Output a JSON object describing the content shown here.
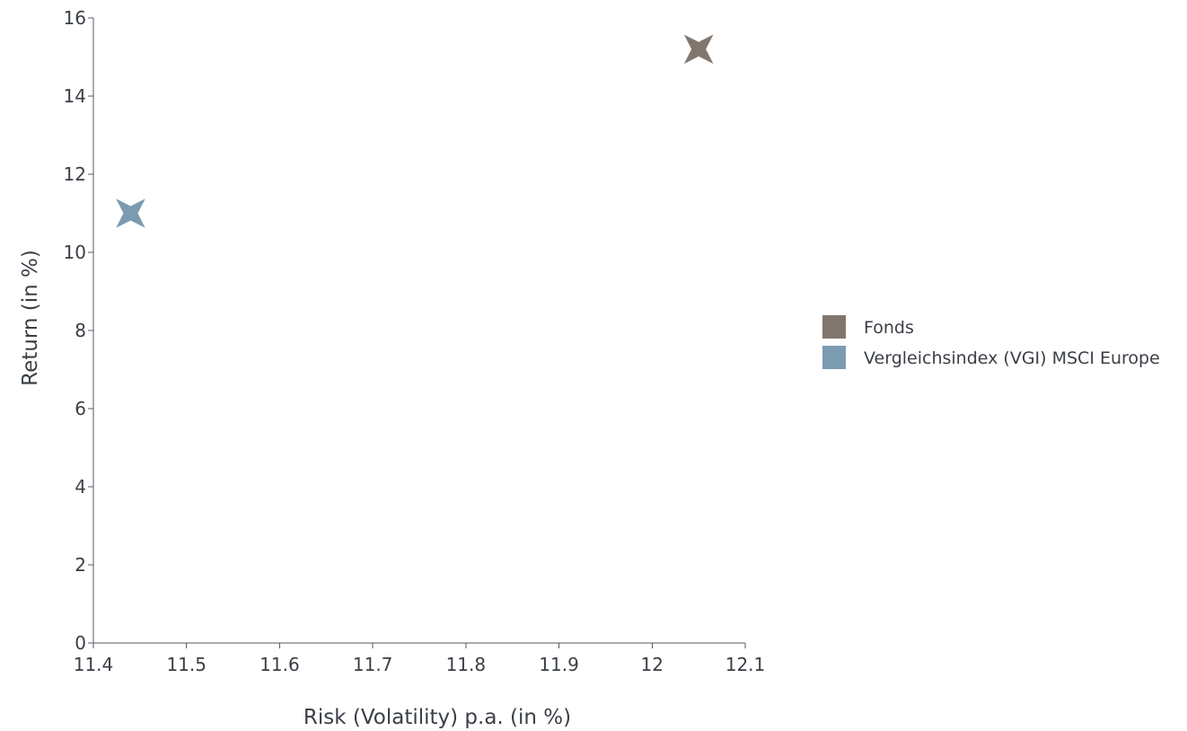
{
  "chart_data": {
    "type": "scatter",
    "title": "",
    "xlabel": "Risk (Volatility) p.a. (in %)",
    "ylabel": "Return (in %)",
    "xlim": [
      11.4,
      12.1
    ],
    "ylim": [
      0,
      16
    ],
    "x_ticks": [
      "11.4",
      "11.5",
      "11.6",
      "11.7",
      "11.8",
      "11.9",
      "12",
      "12.1"
    ],
    "y_ticks": [
      "0",
      "2",
      "4",
      "6",
      "8",
      "10",
      "12",
      "14",
      "16"
    ],
    "grid": false,
    "legend_position": "right",
    "series": [
      {
        "name": "Fonds",
        "color": "#81766d",
        "marker": "star-4",
        "x": 12.05,
        "y": 15.2
      },
      {
        "name": "Vergleichsindex (VGI) MSCI Europe",
        "color": "#7a9bb0",
        "marker": "star-4",
        "x": 11.44,
        "y": 11.0
      }
    ]
  }
}
